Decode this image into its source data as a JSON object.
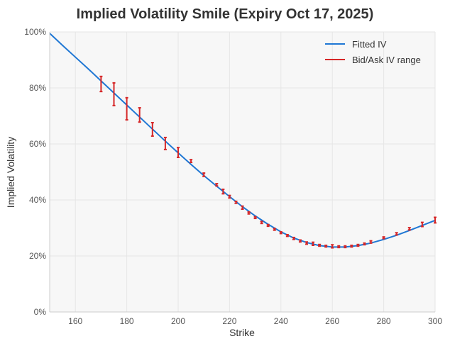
{
  "chart_data": {
    "type": "line",
    "title": "Implied Volatility Smile (Expiry Oct 17, 2025)",
    "xlabel": "Strike",
    "ylabel": "Implied Volatility",
    "xlim": [
      150,
      300
    ],
    "ylim": [
      0,
      100
    ],
    "xticks": [
      160,
      180,
      200,
      220,
      240,
      260,
      280,
      300
    ],
    "yticks": [
      0,
      20,
      40,
      60,
      80,
      100
    ],
    "ytick_format": "percent",
    "grid": true,
    "legend": "top-right",
    "series": [
      {
        "name": "Fitted IV",
        "color": "#1f77d4",
        "type": "line",
        "x": [
          150,
          155,
          160,
          165,
          170,
          175,
          180,
          185,
          190,
          195,
          200,
          205,
          210,
          215,
          220,
          225,
          230,
          235,
          240,
          245,
          250,
          255,
          260,
          265,
          270,
          275,
          280,
          285,
          290,
          295,
          300
        ],
        "y": [
          99.5,
          95.2,
          91,
          86.8,
          82.5,
          78.2,
          73.9,
          69.6,
          65.3,
          61,
          56.8,
          52.7,
          48.7,
          44.9,
          41.2,
          37.6,
          34.3,
          31.3,
          28.6,
          26.4,
          24.8,
          23.7,
          23.2,
          23.2,
          23.7,
          24.6,
          25.9,
          27.4,
          29.1,
          30.9,
          32.7
        ]
      },
      {
        "name": "Bid/Ask IV range",
        "color": "#d62728",
        "type": "errorbar",
        "x": [
          170,
          175,
          180,
          185,
          190,
          195,
          200,
          205,
          210,
          215,
          217.5,
          220,
          222.5,
          225,
          227.5,
          230,
          232.5,
          235,
          237.5,
          240,
          242.5,
          245,
          247.5,
          250,
          252.5,
          255,
          257.5,
          260,
          262.5,
          265,
          267.5,
          270,
          272.5,
          275,
          280,
          285,
          290,
          295,
          300
        ],
        "low": [
          78.7,
          73.7,
          68.6,
          67.8,
          62.8,
          58.0,
          55.2,
          53.4,
          48.4,
          45.0,
          42.2,
          40.7,
          38.8,
          36.7,
          35.0,
          33.4,
          31.6,
          30.6,
          29.2,
          28.0,
          27.0,
          25.9,
          25.0,
          24.2,
          23.8,
          23.5,
          23.2,
          22.9,
          23.0,
          23.0,
          23.2,
          23.5,
          24.0,
          24.6,
          26.2,
          27.5,
          29.3,
          30.5,
          31.8
        ],
        "high": [
          84.1,
          81.8,
          76.5,
          72.9,
          67.6,
          62.3,
          58.7,
          54.4,
          49.6,
          45.8,
          43.8,
          41.6,
          39.5,
          37.8,
          35.7,
          34.0,
          32.3,
          31.2,
          29.8,
          28.6,
          27.6,
          26.6,
          25.7,
          25.0,
          24.9,
          24.1,
          23.8,
          24.0,
          23.6,
          23.6,
          23.8,
          24.1,
          24.6,
          25.4,
          26.8,
          28.3,
          30.1,
          32.0,
          33.8
        ]
      }
    ]
  }
}
